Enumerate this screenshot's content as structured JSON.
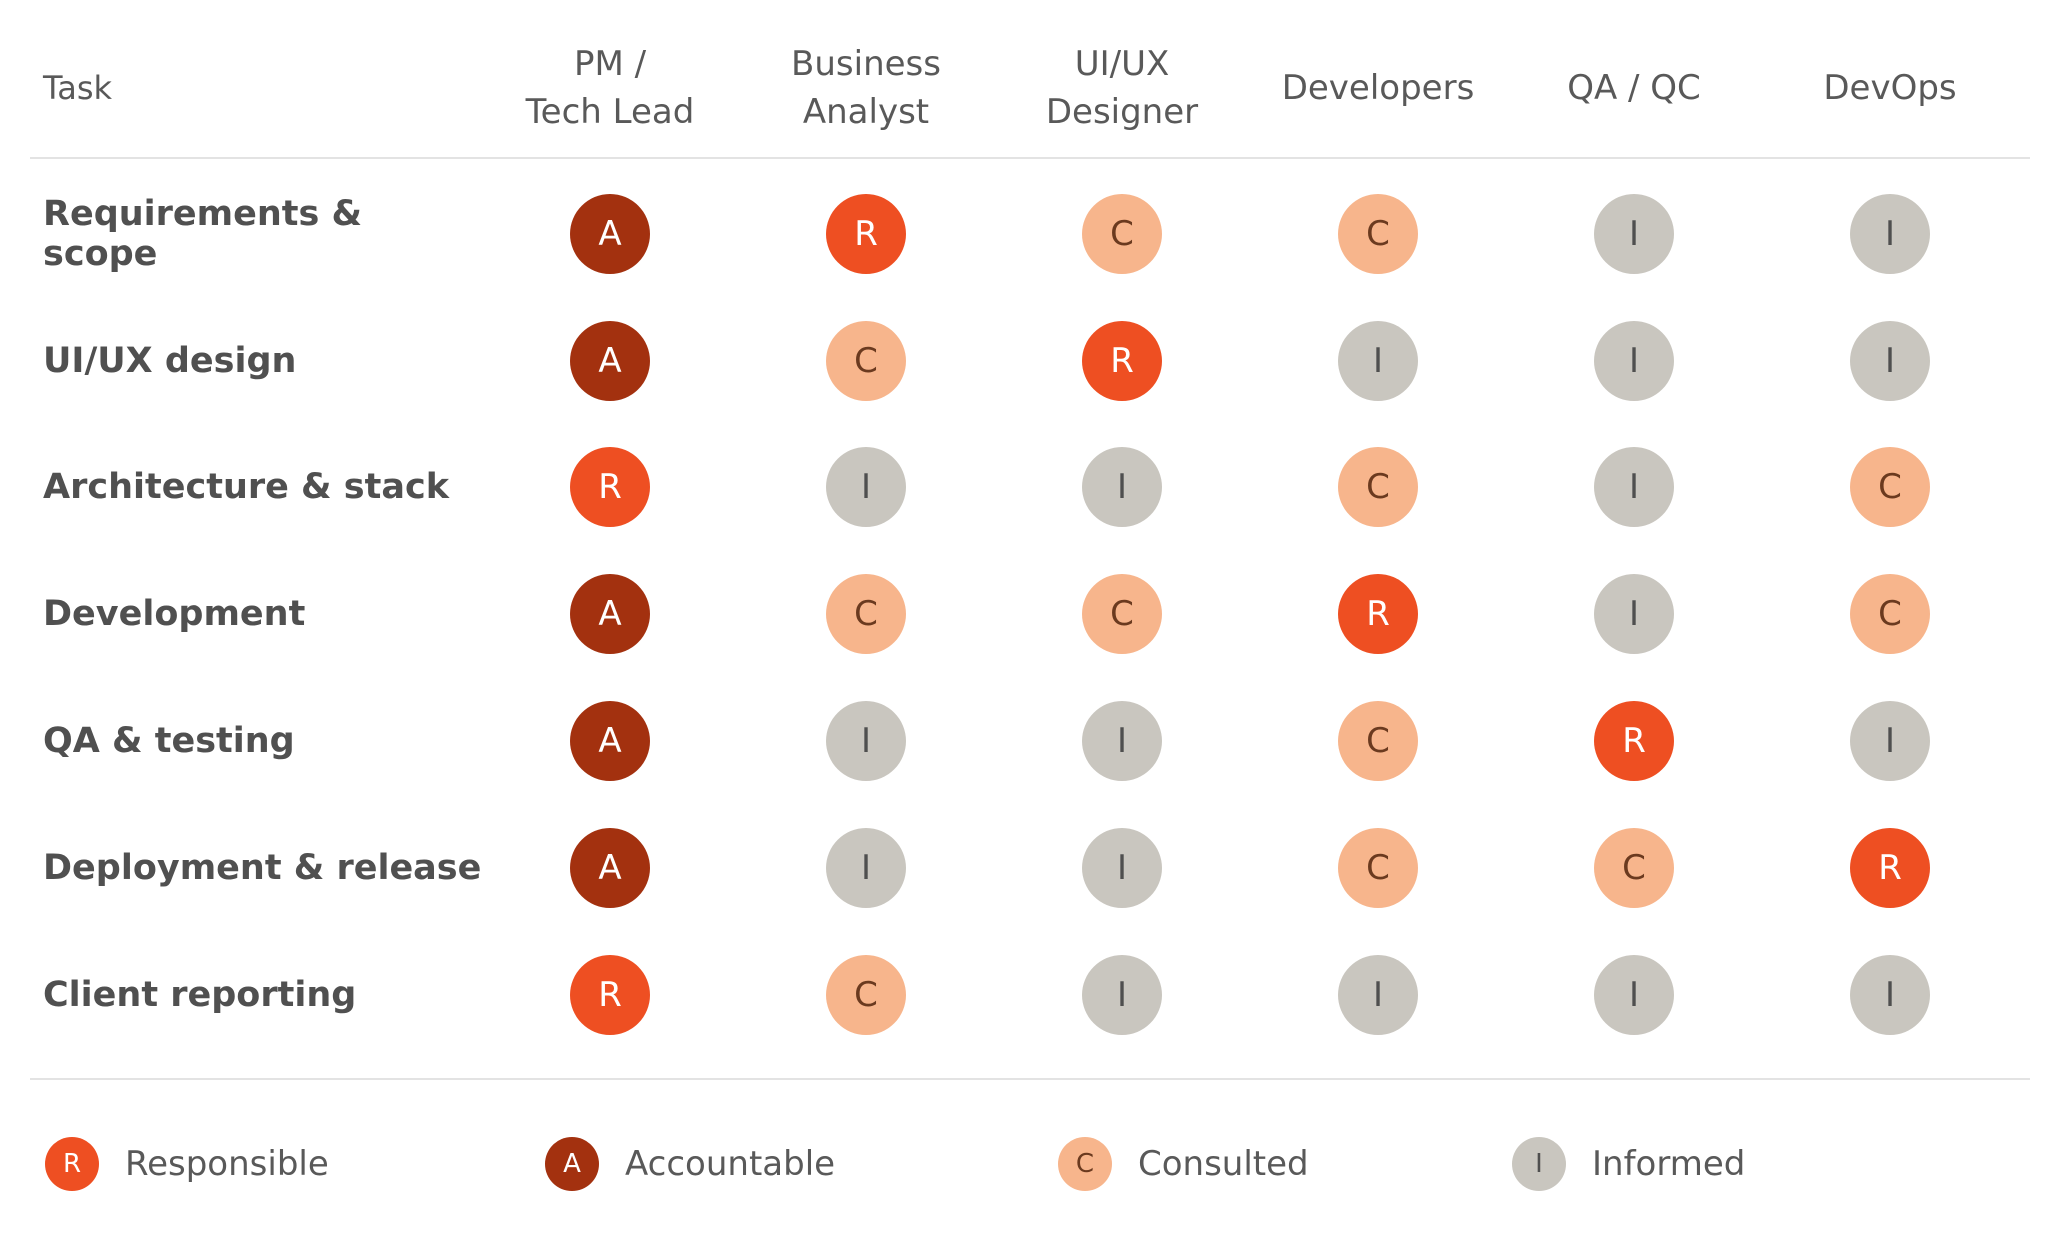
{
  "header": {
    "task_label": "Task",
    "roles": [
      "PM /\nTech Lead",
      "Business\nAnalyst",
      "UI/UX\nDesigner",
      "Developers",
      "QA / QC",
      "DevOps"
    ]
  },
  "tasks": [
    {
      "name": "Requirements & scope",
      "codes": [
        "A",
        "R",
        "C",
        "C",
        "I",
        "I"
      ]
    },
    {
      "name": "UI/UX design",
      "codes": [
        "A",
        "C",
        "R",
        "I",
        "I",
        "I"
      ]
    },
    {
      "name": "Architecture & stack",
      "codes": [
        "R",
        "I",
        "I",
        "C",
        "I",
        "C"
      ]
    },
    {
      "name": "Development",
      "codes": [
        "A",
        "C",
        "C",
        "R",
        "I",
        "C"
      ]
    },
    {
      "name": "QA & testing",
      "codes": [
        "A",
        "I",
        "I",
        "C",
        "R",
        "I"
      ]
    },
    {
      "name": "Deployment & release",
      "codes": [
        "A",
        "I",
        "I",
        "C",
        "C",
        "R"
      ]
    },
    {
      "name": "Client reporting",
      "codes": [
        "R",
        "C",
        "I",
        "I",
        "I",
        "I"
      ]
    }
  ],
  "legend": [
    {
      "code": "R",
      "label": "Responsible"
    },
    {
      "code": "A",
      "label": "Accountable"
    },
    {
      "code": "C",
      "label": "Consulted"
    },
    {
      "code": "I",
      "label": "Informed"
    }
  ],
  "colors": {
    "R": {
      "bg": "#ee4f22",
      "fg": "#ffffff"
    },
    "A": {
      "bg": "#a3310f",
      "fg": "#ffffff"
    },
    "C": {
      "bg": "#f7b58c",
      "fg": "#6b3a1f"
    },
    "I": {
      "bg": "#c9c6bf",
      "fg": "#4f4f4f"
    }
  }
}
